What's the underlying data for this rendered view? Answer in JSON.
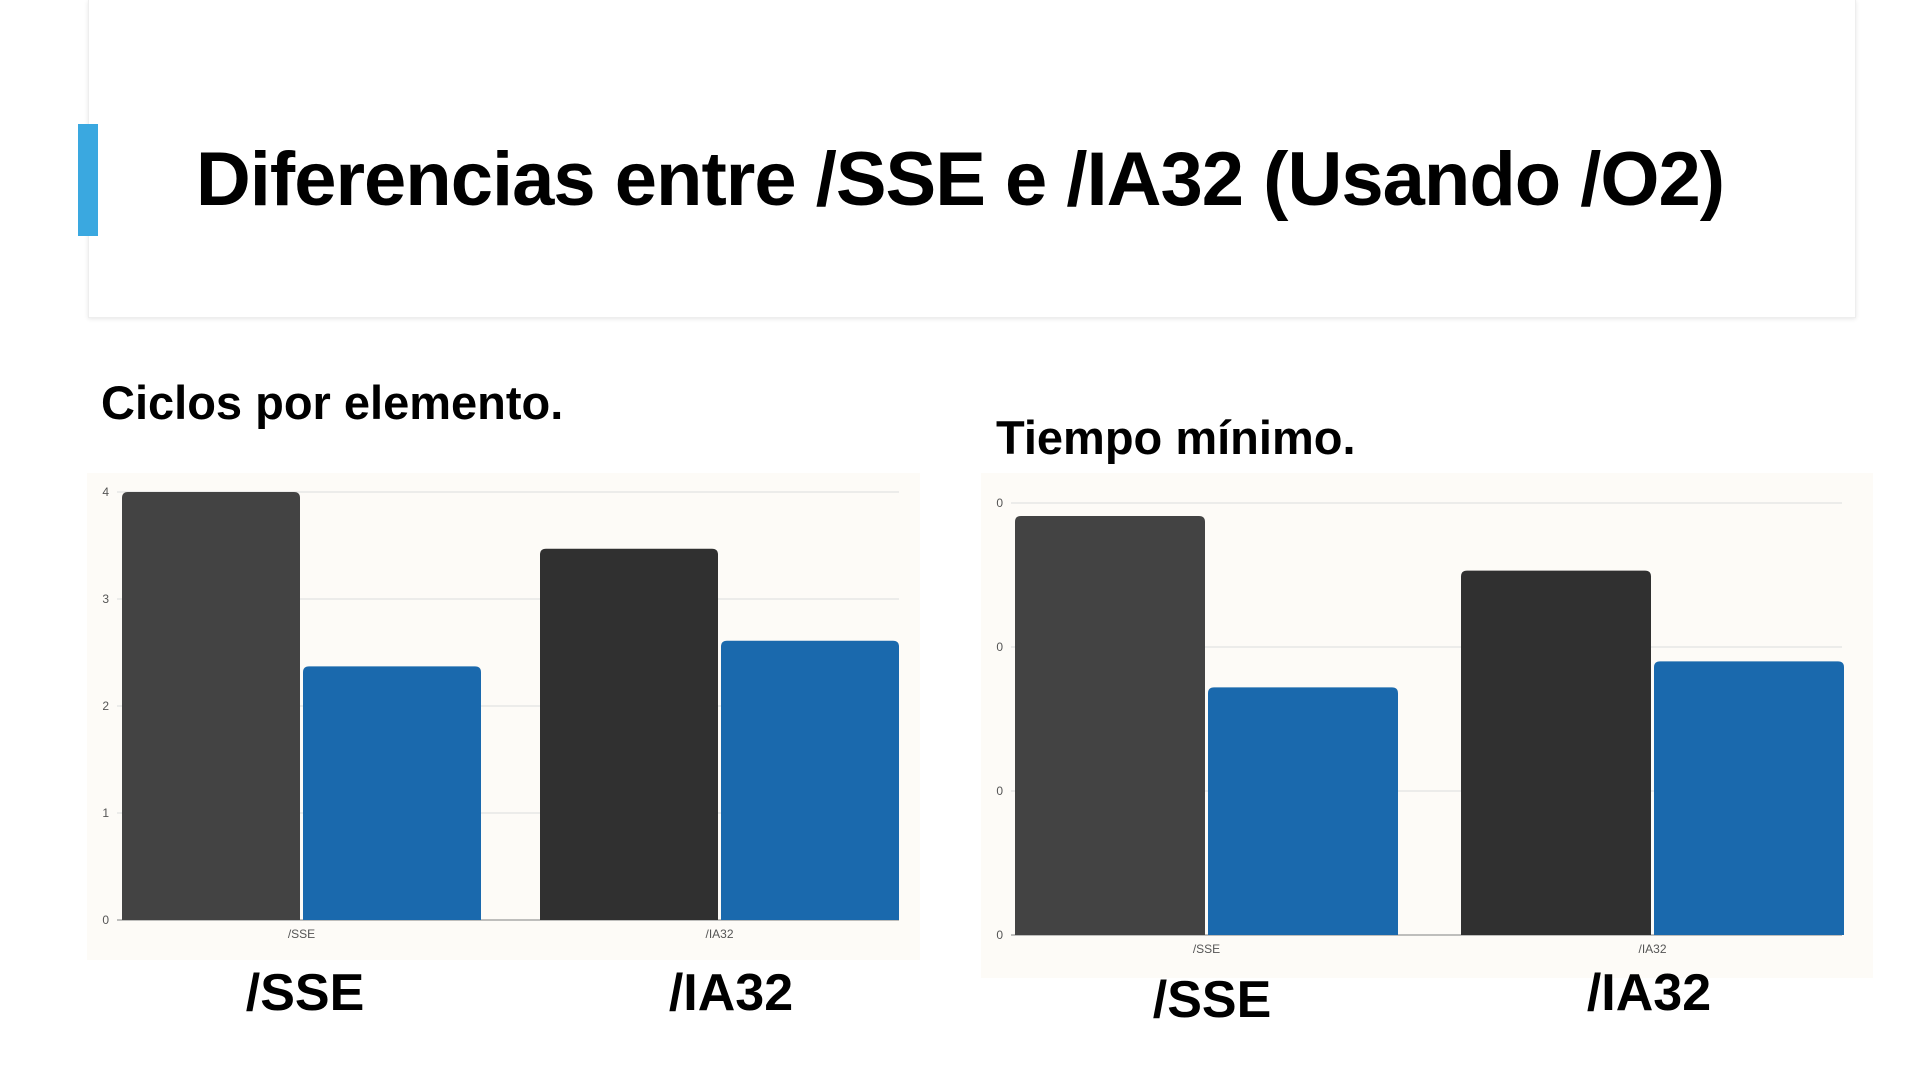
{
  "slide": {
    "title": "Diferencias entre /SSE e /IA32 (Usando /O2)",
    "accent_color": "#3aa8e0"
  },
  "charts": {
    "left": {
      "caption": "Ciclos por elemento.",
      "big_labels": [
        "/SSE",
        "/IA32"
      ]
    },
    "right": {
      "caption": "Tiempo mínimo.",
      "big_labels": [
        "/SSE",
        "/IA32"
      ]
    }
  },
  "chart_data": [
    {
      "type": "bar",
      "categories": [
        "/SSE",
        "/IA32"
      ],
      "series": [
        {
          "values": [
            4.0,
            3.47
          ],
          "color": "#434343"
        },
        {
          "values": [
            2.37,
            2.61
          ],
          "color": "#1a69ad"
        }
      ],
      "series_colors_by_category": [
        [
          "#434343",
          "#1a69ad"
        ],
        [
          "#303030",
          "#1a69ad"
        ]
      ],
      "ylim": [
        0,
        4
      ],
      "yticks": [
        "0",
        "1",
        "2",
        "3",
        "4"
      ],
      "grid": true
    },
    {
      "type": "bar",
      "categories": [
        "/SSE",
        "/IA32"
      ],
      "series": [
        {
          "values": [
            2.91,
            2.53
          ],
          "color": "#434343"
        },
        {
          "values": [
            1.72,
            1.9
          ],
          "color": "#1a69ad"
        }
      ],
      "series_colors_by_category": [
        [
          "#434343",
          "#1a69ad"
        ],
        [
          "#303030",
          "#1a69ad"
        ]
      ],
      "ylim": [
        0,
        3
      ],
      "yticks": [
        "0",
        "0",
        "0",
        "0"
      ],
      "grid": true
    }
  ]
}
